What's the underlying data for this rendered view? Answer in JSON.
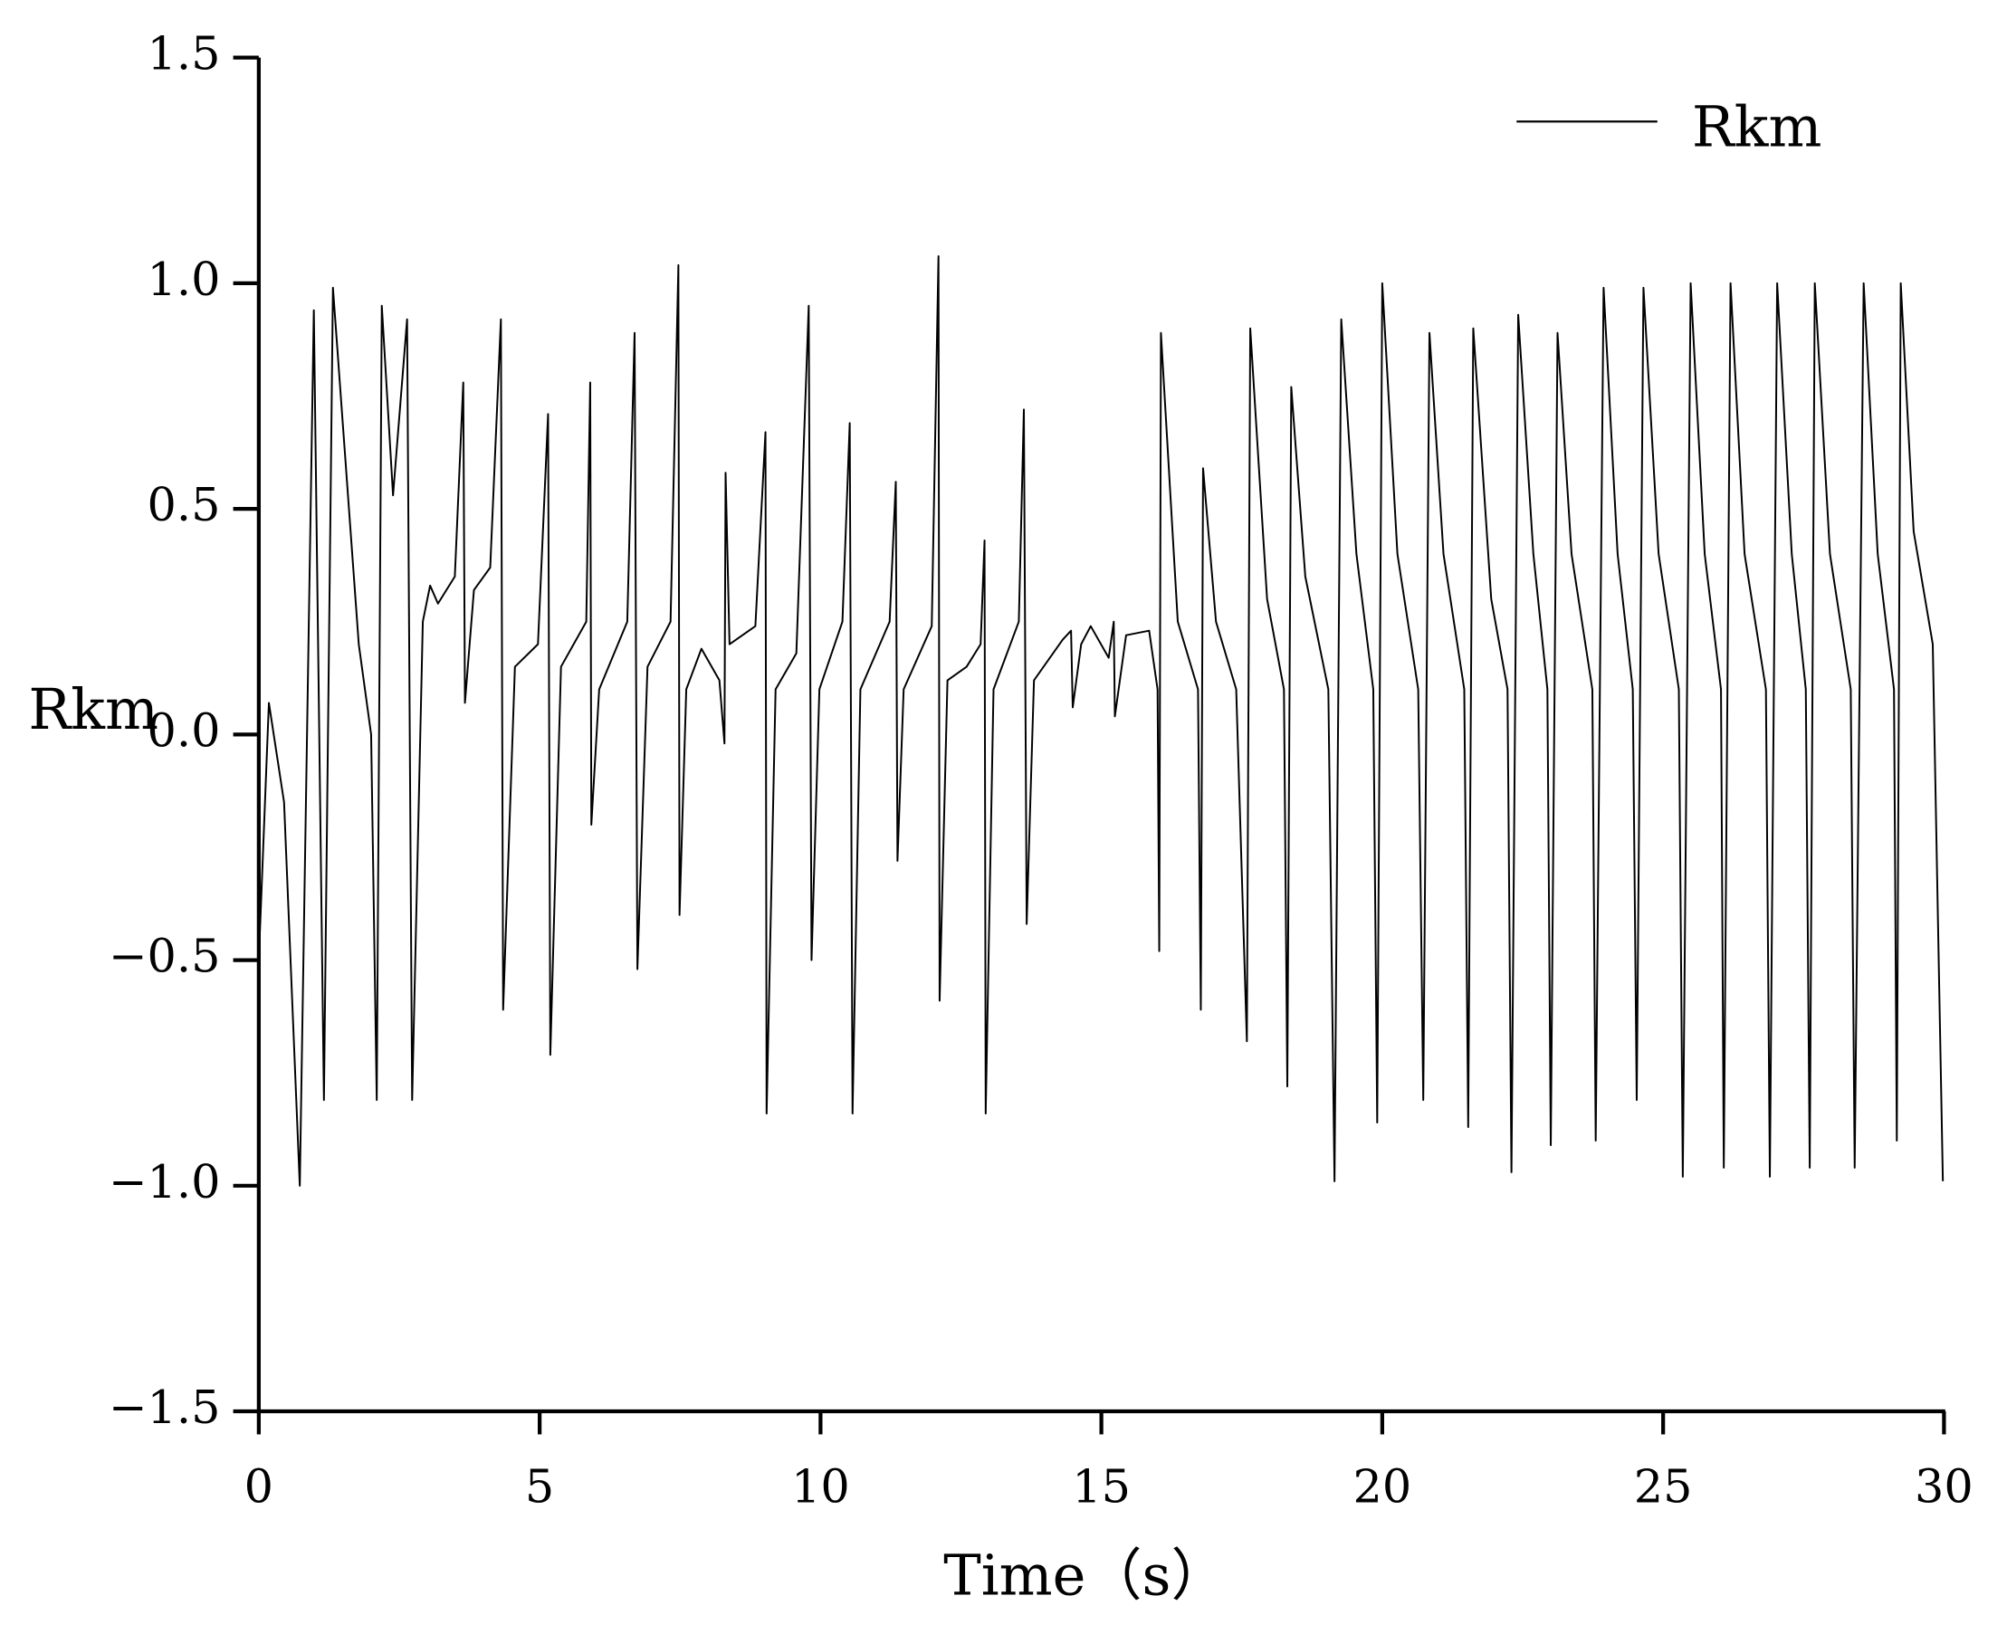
{
  "chart_data": {
    "type": "line",
    "xlabel": "Time（s）",
    "ylabel": "Rkm",
    "xlim": [
      0,
      30
    ],
    "xticks": [
      0,
      5,
      10,
      15,
      20,
      25,
      30
    ],
    "ylim": [
      -1.5,
      1.5
    ],
    "yticks": [
      {
        "value": -1.5,
        "label": "−1.5"
      },
      {
        "value": -1.0,
        "label": "−1.0"
      },
      {
        "value": -0.5,
        "label": "−0.5"
      },
      {
        "value": 0,
        "label": "0.0"
      },
      {
        "value": 0.5,
        "label": "0.5"
      },
      {
        "value": 1.0,
        "label": "1.0"
      },
      {
        "value": 1.5,
        "label": "1.5"
      }
    ],
    "legend": "upper right",
    "grid": false,
    "x": [
      0,
      0.18,
      0.45,
      0.73,
      0.98,
      1.16,
      1.32,
      1.78,
      2.0,
      2.1,
      2.19,
      2.39,
      2.64,
      2.73,
      2.92,
      3.05,
      3.19,
      3.49,
      3.64,
      3.67,
      3.83,
      4.12,
      4.31,
      4.35,
      4.56,
      4.97,
      5.15,
      5.19,
      5.38,
      5.83,
      5.9,
      5.92,
      6.06,
      6.56,
      6.69,
      6.74,
      6.92,
      7.33,
      7.47,
      7.49,
      7.61,
      7.88,
      8.2,
      8.29,
      8.31,
      8.38,
      8.84,
      9.02,
      9.04,
      9.2,
      9.57,
      9.79,
      9.84,
      9.98,
      10.39,
      10.52,
      10.57,
      10.71,
      11.23,
      11.34,
      11.37,
      11.48,
      11.98,
      12.1,
      12.12,
      12.26,
      12.6,
      12.85,
      12.92,
      12.94,
      13.08,
      13.53,
      13.62,
      13.67,
      13.8,
      14.31,
      14.46,
      14.49,
      14.64,
      14.81,
      15.13,
      15.22,
      15.24,
      15.44,
      15.85,
      16.0,
      16.03,
      16.06,
      16.36,
      16.72,
      16.77,
      16.81,
      17.04,
      17.4,
      17.59,
      17.65,
      17.95,
      18.25,
      18.31,
      18.38,
      18.63,
      19.04,
      19.15,
      19.27,
      19.54,
      19.84,
      19.91,
      20.0,
      20.27,
      20.64,
      20.73,
      20.84,
      21.09,
      21.46,
      21.53,
      21.62,
      21.94,
      22.23,
      22.3,
      22.42,
      22.69,
      22.94,
      23.0,
      23.12,
      23.37,
      23.74,
      23.8,
      23.94,
      24.19,
      24.46,
      24.53,
      24.65,
      24.92,
      25.28,
      25.35,
      25.49,
      25.74,
      26.03,
      26.08,
      26.2,
      26.45,
      26.83,
      26.9,
      27.03,
      27.29,
      27.54,
      27.61,
      27.7,
      27.97,
      28.34,
      28.41,
      28.57,
      28.82,
      29.11,
      29.16,
      29.23,
      29.46,
      29.8,
      29.98
    ],
    "series": [
      {
        "name": "Rkm",
        "color": "#000000",
        "values": [
          -0.5,
          0.07,
          -0.15,
          -1.0,
          0.94,
          -0.81,
          0.99,
          0.2,
          0.0,
          -0.81,
          0.95,
          0.53,
          0.92,
          -0.81,
          0.25,
          0.33,
          0.29,
          0.35,
          0.78,
          0.07,
          0.32,
          0.37,
          0.92,
          -0.61,
          0.15,
          0.2,
          0.71,
          -0.71,
          0.15,
          0.25,
          0.78,
          -0.2,
          0.1,
          0.25,
          0.89,
          -0.52,
          0.15,
          0.25,
          1.04,
          -0.4,
          0.1,
          0.19,
          0.12,
          -0.02,
          0.58,
          0.2,
          0.24,
          0.67,
          -0.84,
          0.1,
          0.18,
          0.95,
          -0.5,
          0.1,
          0.25,
          0.69,
          -0.84,
          0.1,
          0.25,
          0.56,
          -0.28,
          0.1,
          0.24,
          1.06,
          -0.59,
          0.12,
          0.15,
          0.2,
          0.43,
          -0.84,
          0.1,
          0.25,
          0.72,
          -0.42,
          0.12,
          0.21,
          0.23,
          0.06,
          0.2,
          0.24,
          0.17,
          0.25,
          0.04,
          0.22,
          0.23,
          0.1,
          -0.48,
          0.89,
          0.25,
          0.1,
          -0.61,
          0.59,
          0.25,
          0.1,
          -0.68,
          0.9,
          0.3,
          0.1,
          -0.78,
          0.77,
          0.35,
          0.1,
          -0.99,
          0.92,
          0.4,
          0.1,
          -0.86,
          1.0,
          0.4,
          0.1,
          -0.81,
          0.89,
          0.4,
          0.1,
          -0.87,
          0.9,
          0.3,
          0.1,
          -0.97,
          0.93,
          0.4,
          0.1,
          -0.91,
          0.89,
          0.4,
          0.1,
          -0.9,
          0.99,
          0.4,
          0.1,
          -0.81,
          0.99,
          0.4,
          0.1,
          -0.98,
          1.0,
          0.4,
          0.1,
          -0.96,
          1.0,
          0.4,
          0.1,
          -0.98,
          1.0,
          0.4,
          0.1,
          -0.96,
          1.0,
          0.4,
          0.1,
          -0.96,
          1.0,
          0.4,
          0.1,
          -0.9,
          1.0,
          0.45,
          0.2,
          -0.99
        ]
      }
    ]
  }
}
